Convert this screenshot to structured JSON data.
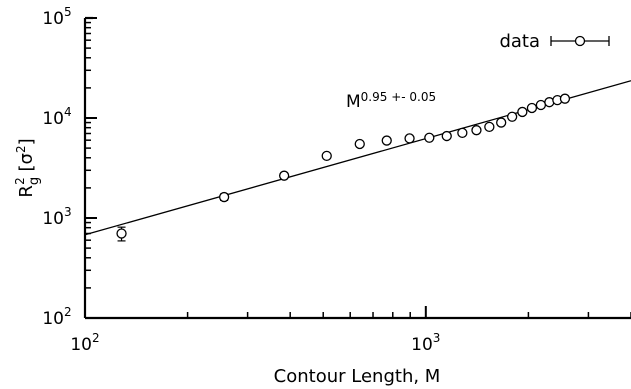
{
  "chart_data": {
    "type": "scatter",
    "xscale": "log",
    "yscale": "log",
    "xlim": [
      100,
      4000
    ],
    "ylim": [
      100,
      100000
    ],
    "xlabel": "Contour Length, M",
    "ylabel": "Rg2 [σ2]",
    "ylabel_parts": {
      "main": "R",
      "sub": "g",
      "sup": "2",
      "bracket_open": " [σ",
      "sup2": "2",
      "bracket_close": "]"
    },
    "x_ticks": [
      {
        "value": 100,
        "base": "10",
        "exp": "2"
      },
      {
        "value": 1000,
        "base": "10",
        "exp": "3"
      }
    ],
    "y_ticks": [
      {
        "value": 100,
        "base": "10",
        "exp": "2"
      },
      {
        "value": 1000,
        "base": "10",
        "exp": "3"
      },
      {
        "value": 10000,
        "base": "10",
        "exp": "4"
      },
      {
        "value": 100000,
        "base": "10",
        "exp": "5"
      }
    ],
    "legend": {
      "label": "data",
      "position": "top-right"
    },
    "series": [
      {
        "name": "data",
        "marker": "open-circle",
        "points": [
          {
            "x": 128,
            "y": 700,
            "err": 110
          },
          {
            "x": 256,
            "y": 1620,
            "err": 120
          },
          {
            "x": 384,
            "y": 2650,
            "err": 150
          },
          {
            "x": 512,
            "y": 4180,
            "err": 200
          },
          {
            "x": 640,
            "y": 5500,
            "err": 250
          },
          {
            "x": 768,
            "y": 5950,
            "err": 250
          },
          {
            "x": 896,
            "y": 6250,
            "err": 250
          },
          {
            "x": 1024,
            "y": 6350,
            "err": 250
          },
          {
            "x": 1152,
            "y": 6600,
            "err": 250
          },
          {
            "x": 1280,
            "y": 7100,
            "err": 250
          },
          {
            "x": 1408,
            "y": 7550,
            "err": 250
          },
          {
            "x": 1536,
            "y": 8150,
            "err": 250
          },
          {
            "x": 1664,
            "y": 9000,
            "err": 300
          },
          {
            "x": 1792,
            "y": 10300,
            "err": 350
          },
          {
            "x": 1920,
            "y": 11500,
            "err": 350
          },
          {
            "x": 2048,
            "y": 12600,
            "err": 400
          },
          {
            "x": 2176,
            "y": 13500,
            "err": 400
          },
          {
            "x": 2304,
            "y": 14400,
            "err": 400
          },
          {
            "x": 2432,
            "y": 15100,
            "err": 400
          },
          {
            "x": 2560,
            "y": 15600,
            "err": 400
          }
        ]
      }
    ],
    "fit": {
      "x": [
        100,
        4000
      ],
      "y": [
        680,
        23600
      ],
      "annotation": {
        "base": "M",
        "exp": "0.95 +- 0.05"
      }
    }
  }
}
